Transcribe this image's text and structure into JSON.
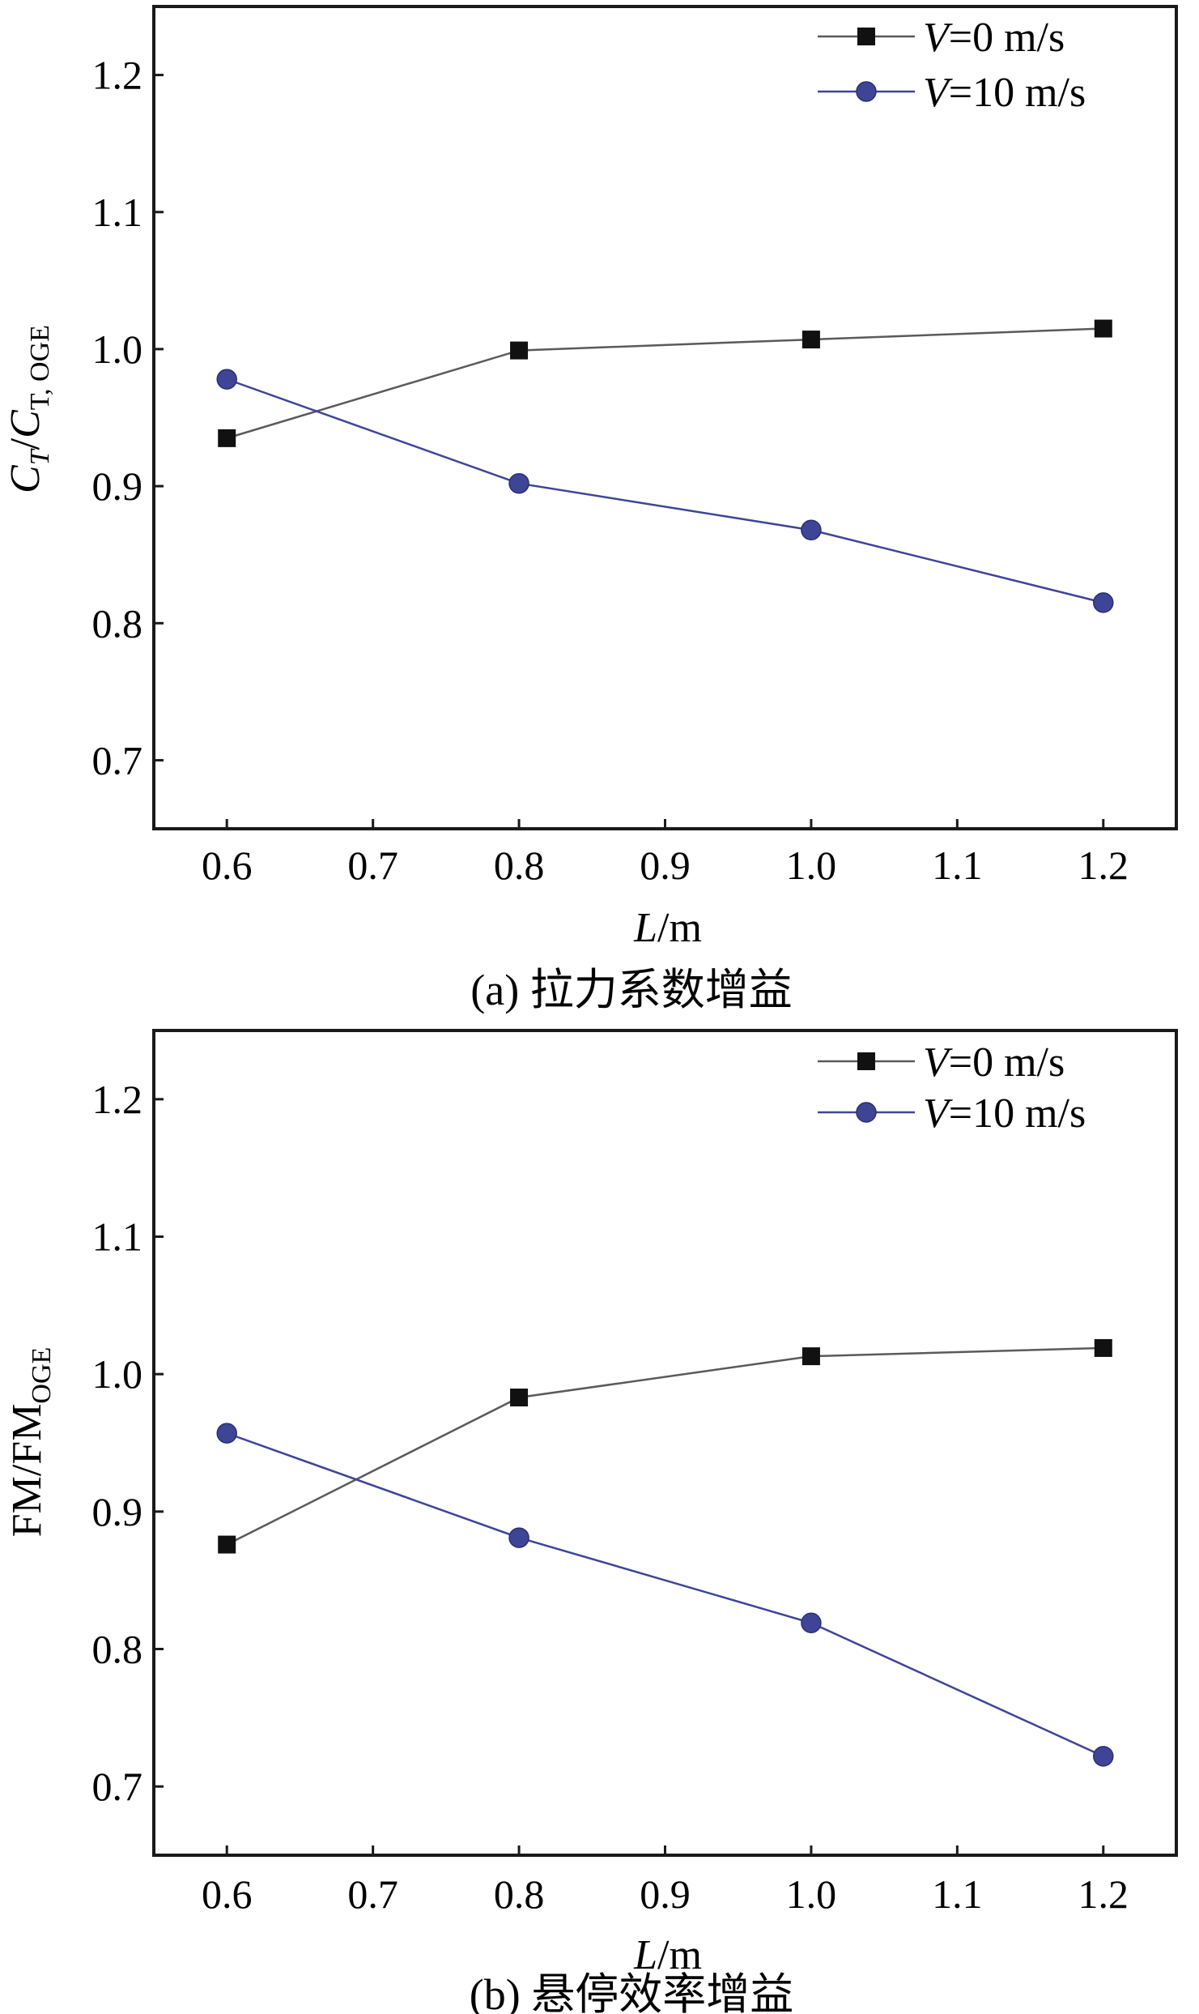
{
  "chart_data": [
    {
      "type": "line",
      "panel": "a",
      "caption": "(a) 拉力系数增益",
      "xlabel": {
        "italic": "L",
        "rest": "/m"
      },
      "ylabel": {
        "text": "C_T/C_T,OGE",
        "c1": "C",
        "s1": "T",
        "slash": "/",
        "c2": "C",
        "s2": "T, OGE"
      },
      "xlim": [
        0.55,
        1.25
      ],
      "ylim": [
        0.65,
        1.25
      ],
      "xticks": [
        "0.6",
        "0.7",
        "0.8",
        "0.9",
        "1.0",
        "1.1",
        "1.2"
      ],
      "yticks": [
        "0.7",
        "0.8",
        "0.9",
        "1.0",
        "1.1",
        "1.2"
      ],
      "legend_position": "top-right",
      "series": [
        {
          "name": "V=0 m/s",
          "legend_italic": "V",
          "legend_rest": "=0 m/s",
          "marker": "square",
          "color": "#111111",
          "line_color": "#5a5a5a",
          "x": [
            0.6,
            0.8,
            1.0,
            1.2
          ],
          "values": [
            0.935,
            0.999,
            1.007,
            1.015
          ]
        },
        {
          "name": "V=10 m/s",
          "legend_italic": "V",
          "legend_rest": "=10 m/s",
          "marker": "circle",
          "color": "#3e4597",
          "line_color": "#3e4597",
          "x": [
            0.6,
            0.8,
            1.0,
            1.2
          ],
          "values": [
            0.978,
            0.902,
            0.868,
            0.815
          ]
        }
      ]
    },
    {
      "type": "line",
      "panel": "b",
      "caption": "(b) 悬停效率增益",
      "xlabel": {
        "italic": "L",
        "rest": "/m"
      },
      "ylabel": {
        "text": "FM/FM_OGE",
        "main": "FM/FM",
        "sub": "OGE"
      },
      "xlim": [
        0.55,
        1.25
      ],
      "ylim": [
        0.65,
        1.25
      ],
      "xticks": [
        "0.6",
        "0.7",
        "0.8",
        "0.9",
        "1.0",
        "1.1",
        "1.2"
      ],
      "yticks": [
        "0.7",
        "0.8",
        "0.9",
        "1.0",
        "1.1",
        "1.2"
      ],
      "legend_position": "top-right",
      "series": [
        {
          "name": "V=0 m/s",
          "legend_italic": "V",
          "legend_rest": "=0 m/s",
          "marker": "square",
          "color": "#111111",
          "line_color": "#5a5a5a",
          "x": [
            0.6,
            0.8,
            1.0,
            1.2
          ],
          "values": [
            0.876,
            0.983,
            1.013,
            1.019
          ]
        },
        {
          "name": "V=10 m/s",
          "legend_italic": "V",
          "legend_rest": "=10 m/s",
          "marker": "circle",
          "color": "#3e4597",
          "line_color": "#3e4597",
          "x": [
            0.6,
            0.8,
            1.0,
            1.2
          ],
          "values": [
            0.957,
            0.881,
            0.819,
            0.722
          ]
        }
      ]
    }
  ]
}
